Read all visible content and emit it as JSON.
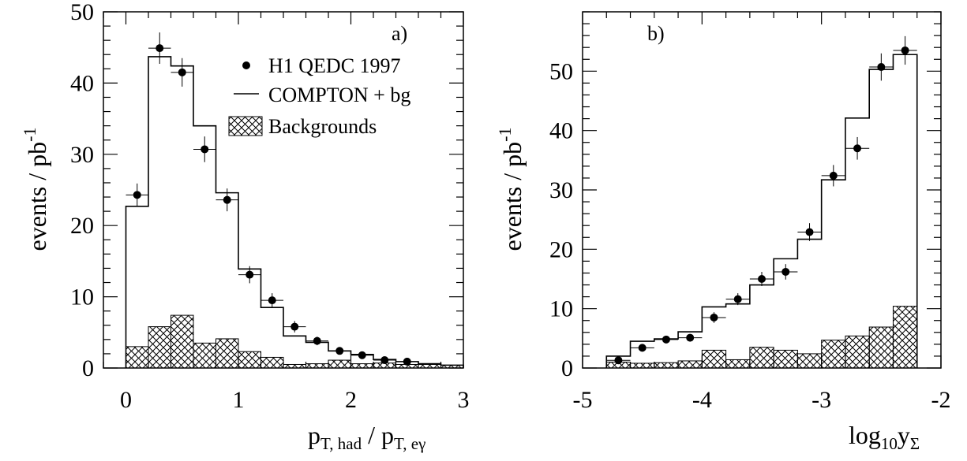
{
  "chart_data": [
    {
      "type": "histogram",
      "panel_label": "a)",
      "xlabel_parts": [
        "p",
        "T, had",
        " / p",
        "T, eγ"
      ],
      "ylabel_parts": [
        "events / pb",
        "-1"
      ],
      "xlim": [
        -0.2,
        3.0
      ],
      "ylim": [
        0,
        50
      ],
      "xticks": [
        0,
        1,
        2,
        3
      ],
      "xtick_labels": [
        "0",
        "1",
        "2",
        "3"
      ],
      "yticks": [
        0,
        10,
        20,
        30,
        40,
        50
      ],
      "ytick_labels": [
        "0",
        "10",
        "20",
        "30",
        "40",
        "50"
      ],
      "legend": {
        "position": "top-right",
        "entries": [
          {
            "label": "H1 QEDC 1997",
            "kind": "marker"
          },
          {
            "label": "COMPTON + bg",
            "kind": "line"
          },
          {
            "label": "Backgrounds",
            "kind": "hatch"
          }
        ]
      },
      "bin_edges": [
        0,
        0.2,
        0.4,
        0.6,
        0.8,
        1.0,
        1.2,
        1.4,
        1.6,
        1.8,
        2.0,
        2.2,
        2.4,
        2.6,
        2.8,
        3.0
      ],
      "series": [
        {
          "name": "COMPTON + bg",
          "style": "step",
          "values": [
            22.7,
            43.7,
            42.4,
            34.0,
            24.6,
            13.9,
            8.5,
            4.5,
            3.6,
            2.4,
            1.9,
            1.2,
            0.9,
            0.6,
            0.4
          ]
        },
        {
          "name": "Backgrounds",
          "style": "hatched",
          "values": [
            3.0,
            5.8,
            7.4,
            3.5,
            4.1,
            2.3,
            1.5,
            0.5,
            0.6,
            1.1,
            0.6,
            0.7,
            0.5,
            0.5,
            0.4
          ]
        },
        {
          "name": "H1 QEDC 1997",
          "style": "points",
          "x": [
            0.1,
            0.3,
            0.5,
            0.7,
            0.9,
            1.1,
            1.3,
            1.5,
            1.7,
            1.9,
            2.1,
            2.3,
            2.5
          ],
          "values": [
            24.3,
            44.9,
            41.5,
            30.7,
            23.6,
            13.1,
            9.5,
            5.8,
            3.8,
            2.4,
            1.8,
            1.1,
            0.9
          ],
          "errors": [
            1.6,
            2.2,
            2.0,
            1.8,
            1.6,
            1.2,
            1.0,
            0.8,
            0.6,
            0.5,
            0.4,
            0.3,
            0.3
          ]
        }
      ]
    },
    {
      "type": "histogram",
      "panel_label": "b)",
      "xlabel_parts": [
        "log",
        "10",
        "y",
        "Σ"
      ],
      "ylabel_parts": [
        "events / pb",
        "-1"
      ],
      "xlim": [
        -5.0,
        -2.0
      ],
      "ylim": [
        0,
        60
      ],
      "xticks": [
        -5,
        -4,
        -3,
        -2
      ],
      "xtick_labels": [
        "-5",
        "-4",
        "-3",
        "-2"
      ],
      "yticks": [
        0,
        10,
        20,
        30,
        40,
        50
      ],
      "ytick_labels": [
        "0",
        "10",
        "20",
        "30",
        "40",
        "50"
      ],
      "bin_edges": [
        -4.8,
        -4.6,
        -4.4,
        -4.2,
        -4.0,
        -3.8,
        -3.6,
        -3.4,
        -3.2,
        -3.0,
        -2.8,
        -2.6,
        -2.4,
        -2.2
      ],
      "series": [
        {
          "name": "COMPTON + bg",
          "style": "step",
          "values": [
            2.0,
            4.5,
            4.9,
            6.1,
            10.3,
            10.8,
            14.0,
            18.4,
            21.7,
            31.7,
            42.1,
            50.3,
            52.8
          ]
        },
        {
          "name": "Backgrounds",
          "style": "hatched",
          "values": [
            1.0,
            0.8,
            0.9,
            1.2,
            3.0,
            1.4,
            3.5,
            3.0,
            2.4,
            4.7,
            5.4,
            6.9,
            10.4
          ]
        },
        {
          "name": "H1 QEDC 1997",
          "style": "points",
          "x": [
            -4.7,
            -4.5,
            -4.3,
            -4.1,
            -3.9,
            -3.7,
            -3.5,
            -3.3,
            -3.1,
            -2.9,
            -2.7,
            -2.5,
            -2.3
          ],
          "values": [
            1.3,
            3.4,
            4.8,
            5.1,
            8.5,
            11.6,
            15.0,
            16.2,
            22.9,
            32.4,
            37.0,
            50.7,
            53.5
          ],
          "errors": [
            0.4,
            0.5,
            0.6,
            0.6,
            0.9,
            1.0,
            1.2,
            1.3,
            1.5,
            1.8,
            1.9,
            2.3,
            2.4
          ]
        }
      ]
    }
  ]
}
